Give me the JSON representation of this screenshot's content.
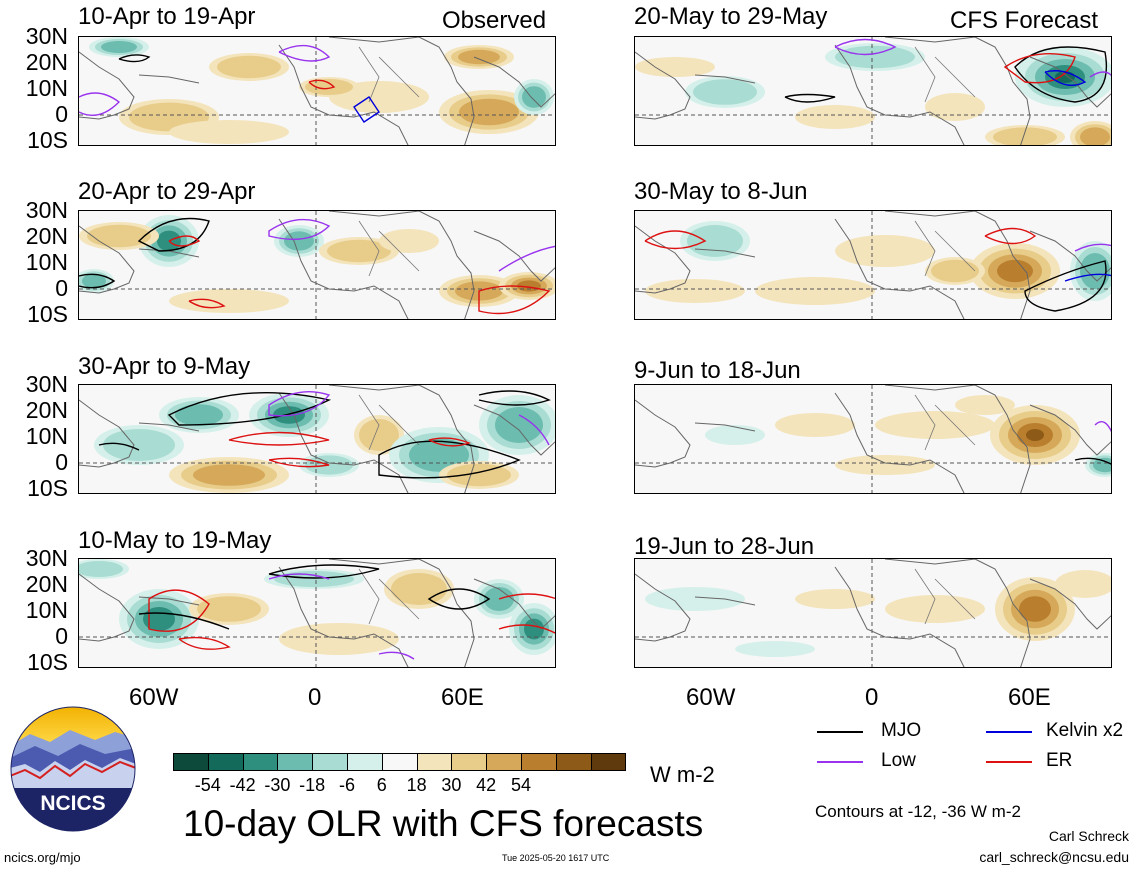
{
  "header": {
    "observed_label": "Observed",
    "forecast_label": "CFS Forecast"
  },
  "panels_observed": [
    {
      "title": "10-Apr to 19-Apr"
    },
    {
      "title": "20-Apr to 29-Apr"
    },
    {
      "title": "30-Apr to 9-May"
    },
    {
      "title": "10-May to 19-May"
    }
  ],
  "panels_forecast": [
    {
      "title": "20-May to 29-May"
    },
    {
      "title": "30-May to 8-Jun"
    },
    {
      "title": "9-Jun to 18-Jun"
    },
    {
      "title": "19-Jun to 28-Jun"
    }
  ],
  "axes": {
    "lat_ticks": [
      "30N",
      "20N",
      "10N",
      "0",
      "10S"
    ],
    "lon_ticks": [
      "60W",
      "0",
      "60E"
    ]
  },
  "colorbar": {
    "labels": [
      "-54",
      "-42",
      "-30",
      "-18",
      "-6",
      "6",
      "18",
      "30",
      "42",
      "54"
    ],
    "colors": [
      "#0d4a3b",
      "#136a5a",
      "#2e8f7f",
      "#6cbcaf",
      "#a9dcd2",
      "#d5f0ea",
      "#f8f8f8",
      "#f4e4bb",
      "#e8cc8a",
      "#d6a95a",
      "#b97f2e",
      "#8e5a17",
      "#5e3a0c"
    ],
    "units": "W m-2"
  },
  "legend": {
    "items": [
      {
        "label": "MJO",
        "color": "#000000"
      },
      {
        "label": "Kelvin x2",
        "color": "#0000dd"
      },
      {
        "label": "Low",
        "color": "#9933ee"
      },
      {
        "label": "ER",
        "color": "#dd1111"
      }
    ],
    "contour_note": "Contours at -12, -36 W m-2"
  },
  "footer": {
    "main_title": "10-day OLR with CFS forecasts",
    "logo_text": "NCICS",
    "url": "ncics.org/mjo",
    "timestamp": "Tue 2025-05-20 1617 UTC",
    "author": "Carl Schreck",
    "email": "carl_schreck@ncsu.edu"
  }
}
